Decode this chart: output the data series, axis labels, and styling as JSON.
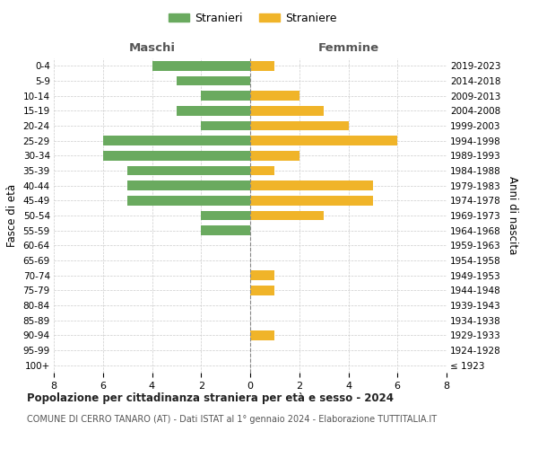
{
  "age_groups": [
    "100+",
    "95-99",
    "90-94",
    "85-89",
    "80-84",
    "75-79",
    "70-74",
    "65-69",
    "60-64",
    "55-59",
    "50-54",
    "45-49",
    "40-44",
    "35-39",
    "30-34",
    "25-29",
    "20-24",
    "15-19",
    "10-14",
    "5-9",
    "0-4"
  ],
  "birth_years": [
    "≤ 1923",
    "1924-1928",
    "1929-1933",
    "1934-1938",
    "1939-1943",
    "1944-1948",
    "1949-1953",
    "1954-1958",
    "1959-1963",
    "1964-1968",
    "1969-1973",
    "1974-1978",
    "1979-1983",
    "1984-1988",
    "1989-1993",
    "1994-1998",
    "1999-2003",
    "2004-2008",
    "2009-2013",
    "2014-2018",
    "2019-2023"
  ],
  "males": [
    0,
    0,
    0,
    0,
    0,
    0,
    0,
    0,
    0,
    2,
    2,
    5,
    5,
    5,
    6,
    6,
    2,
    3,
    2,
    3,
    4
  ],
  "females": [
    0,
    0,
    1,
    0,
    0,
    1,
    1,
    0,
    0,
    0,
    3,
    5,
    5,
    1,
    2,
    6,
    4,
    3,
    2,
    0,
    1
  ],
  "male_color": "#6aaa5f",
  "female_color": "#f0b429",
  "title": "Popolazione per cittadinanza straniera per età e sesso - 2024",
  "subtitle": "COMUNE DI CERRO TANARO (AT) - Dati ISTAT al 1° gennaio 2024 - Elaborazione TUTTITALIA.IT",
  "xlabel_left": "Maschi",
  "xlabel_right": "Femmine",
  "ylabel_left": "Fasce di età",
  "ylabel_right": "Anni di nascita",
  "legend_male": "Stranieri",
  "legend_female": "Straniere",
  "xlim": 8,
  "background_color": "#ffffff",
  "grid_color": "#cccccc"
}
